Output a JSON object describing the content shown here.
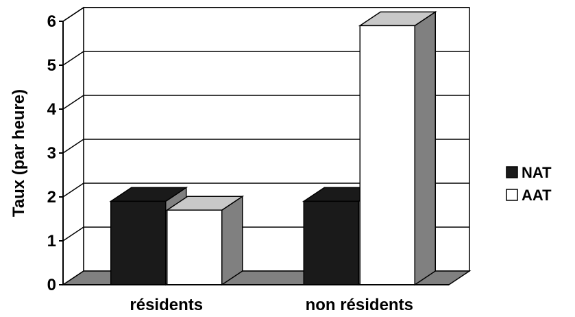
{
  "chart_data": {
    "type": "bar",
    "title": "",
    "xlabel": "",
    "ylabel": "Taux (par heure)",
    "categories": [
      "résidents",
      "non résidents"
    ],
    "series": [
      {
        "name": "NAT",
        "values": [
          1.9,
          1.9
        ]
      },
      {
        "name": "AAT",
        "values": [
          1.7,
          5.9
        ]
      }
    ],
    "ylim": [
      0,
      6
    ],
    "yticks": [
      "0",
      "1",
      "2",
      "3",
      "4",
      "5",
      "6"
    ],
    "grid": true,
    "legend_position": "right",
    "three_d": true
  },
  "colors": {
    "nat_front": "#1a1a1a",
    "aat_front": "#ffffff",
    "side": "#808080",
    "top": "#c8c8c8",
    "floor": "#808080",
    "grid": "#000000"
  }
}
